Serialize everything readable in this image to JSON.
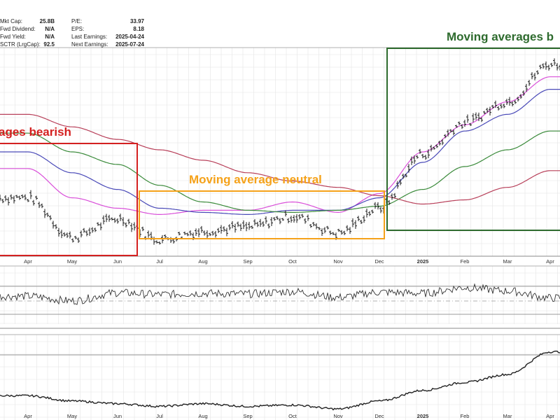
{
  "header": {
    "left": [
      {
        "label": "Mkt Cap:",
        "value": "25.8B"
      },
      {
        "label": "Fwd Dividend:",
        "value": "N/A"
      },
      {
        "label": "Fwd Yield:",
        "value": "N/A"
      },
      {
        "label": "SCTR (LrgCap):",
        "value": "92.5"
      }
    ],
    "right": [
      {
        "label": "P/E:",
        "value": "33.97"
      },
      {
        "label": "EPS:",
        "value": "8.18"
      },
      {
        "label": "Last Earnings:",
        "value": "2025-04-24"
      },
      {
        "label": "Next Earnings:",
        "value": "2025-07-24"
      }
    ]
  },
  "annotations": [
    {
      "text": "ages bearish",
      "color": "#d42020"
    },
    {
      "text": "Moving average neutral",
      "color": "#f5a21a"
    },
    {
      "text": "Moving averages b",
      "color": "#2e6b2e"
    }
  ],
  "colors": {
    "price_bars": "#1a1a1a",
    "ma_short": "#d94fd9",
    "ma_mid": "#4a4ab8",
    "ma_long": "#3a8a3a",
    "ma_longest": "#b8405a",
    "box_bearish": "#d42020",
    "box_neutral": "#f5a21a",
    "box_bullish": "#2e6b2e",
    "osc_fill_pos": "#4a7a4a",
    "osc_fill_neg": "#8a3a8a",
    "grid": "#e4e4e4",
    "panel_border": "#b0b0b0"
  },
  "axis": {
    "months": [
      "Apr",
      "May",
      "Jun",
      "Jul",
      "Aug",
      "Sep",
      "Oct",
      "Nov",
      "Dec",
      "2025",
      "Feb",
      "Mar",
      "Apr"
    ]
  },
  "chart_data": {
    "type": "line",
    "grid": true,
    "x": [
      "Apr",
      "May",
      "Jun",
      "Jul",
      "Aug",
      "Sep",
      "Oct",
      "Nov",
      "Dec",
      "2025",
      "Feb",
      "Mar",
      "Apr"
    ],
    "series": [
      {
        "values": [
          0.28,
          0.09,
          0.18,
          0.08,
          0.12,
          0.14,
          0.19,
          0.11,
          0.23,
          0.49,
          0.64,
          0.74,
          0.92
        ]
      },
      {
        "values": [
          0.42,
          0.28,
          0.23,
          0.2,
          0.22,
          0.22,
          0.26,
          0.21,
          0.3,
          0.5,
          0.63,
          0.74,
          0.86
        ]
      },
      {
        "values": [
          0.5,
          0.4,
          0.32,
          0.23,
          0.21,
          0.2,
          0.22,
          0.22,
          0.28,
          0.45,
          0.6,
          0.68,
          0.8
        ]
      },
      {
        "values": [
          0.59,
          0.5,
          0.44,
          0.34,
          0.26,
          0.22,
          0.21,
          0.22,
          0.24,
          0.32,
          0.43,
          0.51,
          0.6
        ]
      },
      {
        "values": [
          0.68,
          0.62,
          0.56,
          0.51,
          0.46,
          0.4,
          0.36,
          0.33,
          0.29,
          0.25,
          0.27,
          0.33,
          0.41
        ]
      }
    ],
    "oscillator": {
      "values": [
        0.48,
        0.4,
        0.54,
        0.51,
        0.53,
        0.52,
        0.56,
        0.46,
        0.55,
        0.53,
        0.63,
        0.57,
        0.45
      ]
    },
    "relative_strength": {
      "values": [
        0.26,
        0.18,
        0.14,
        0.1,
        0.14,
        0.1,
        0.12,
        0.06,
        0.18,
        0.34,
        0.46,
        0.58,
        0.92
      ]
    }
  }
}
